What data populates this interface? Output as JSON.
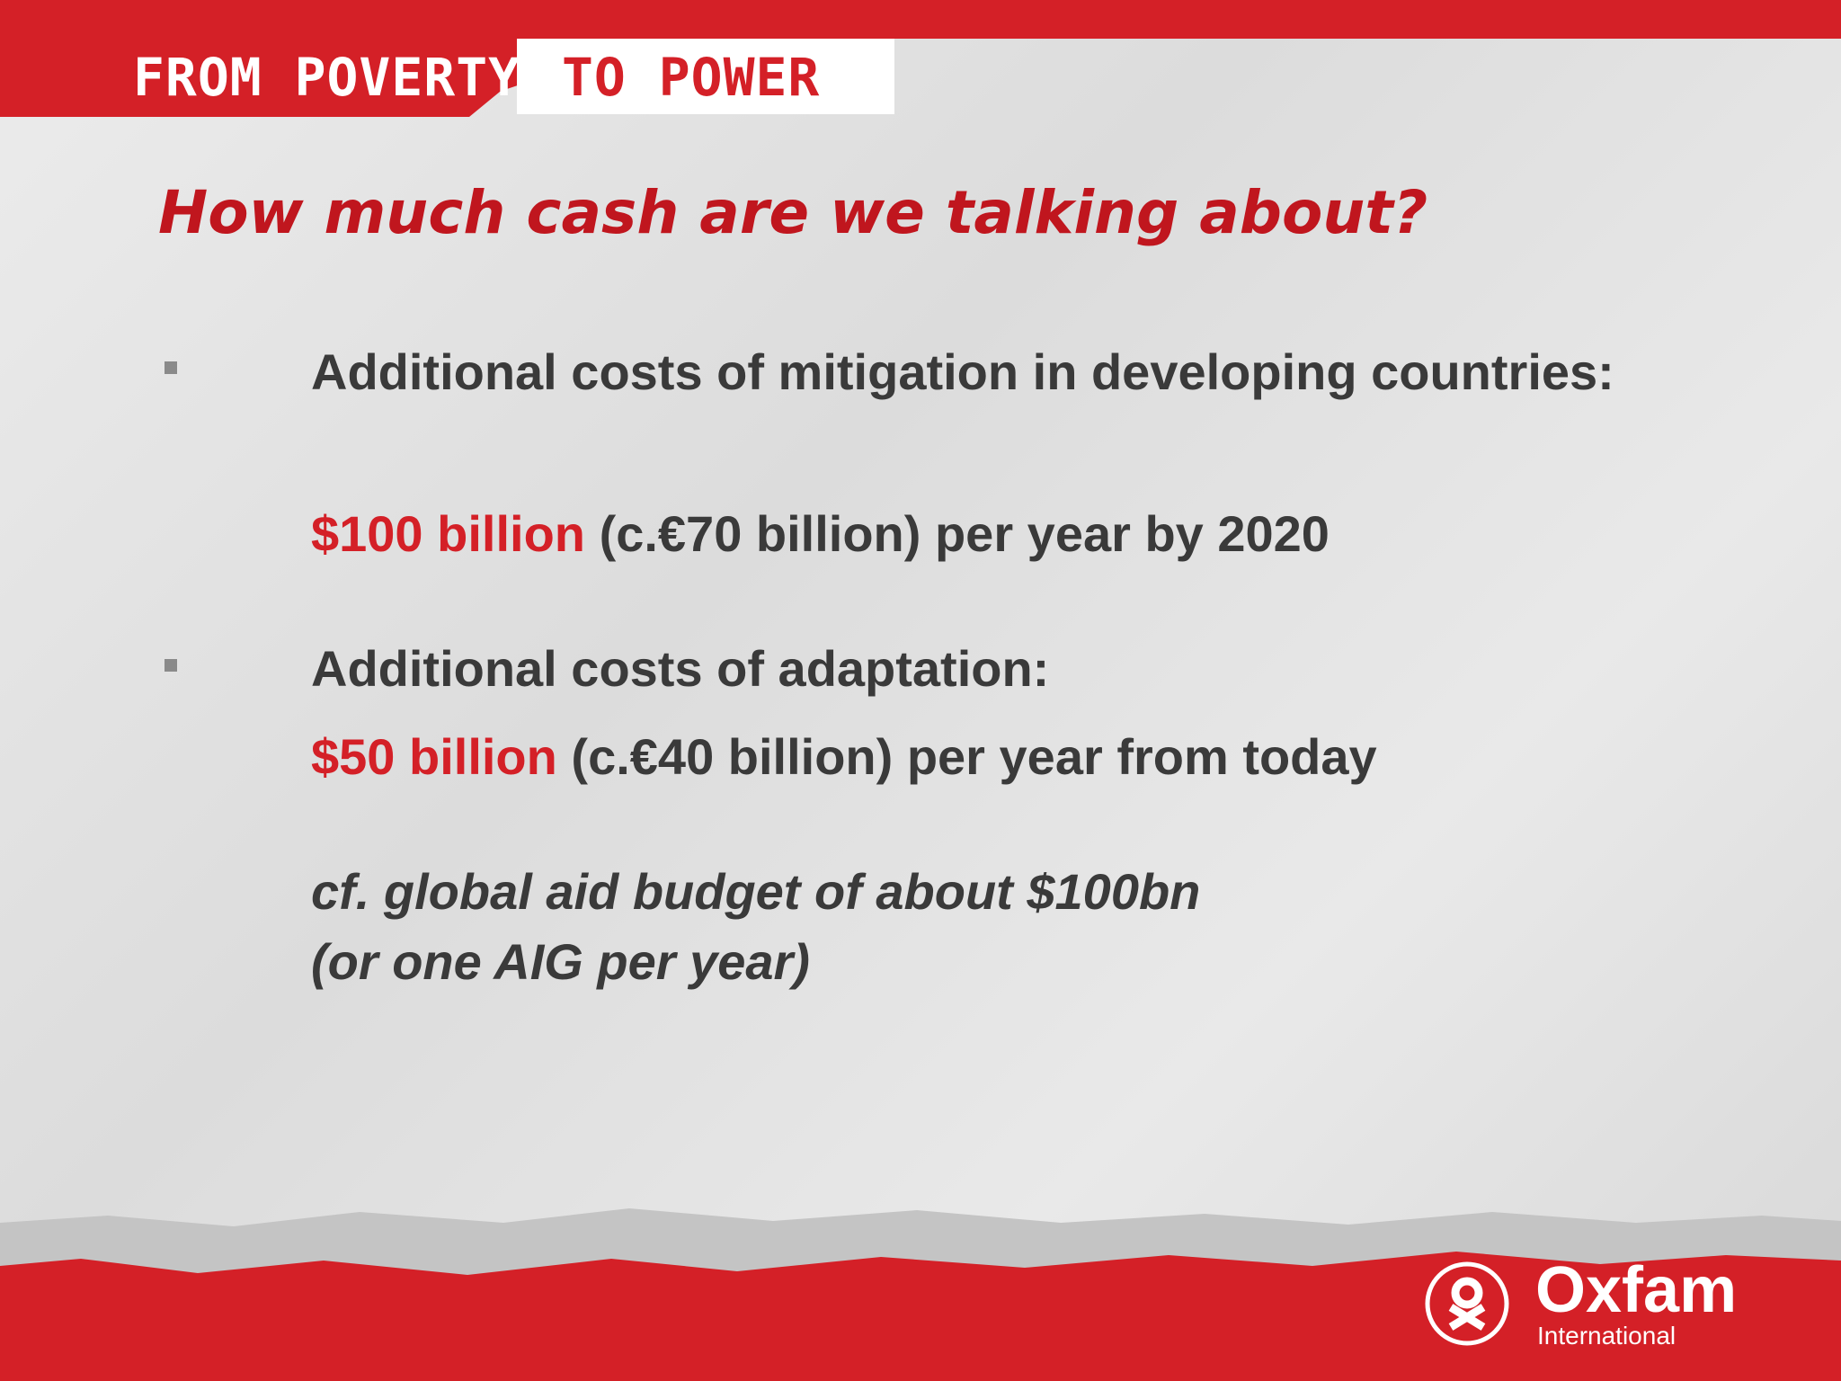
{
  "header": {
    "brand_left": "FROM POVERTY",
    "brand_right": "TO POWER"
  },
  "title": "How much cash are we talking about?",
  "bullets": [
    {
      "label": "Additional costs of mitigation in developing countries:",
      "highlight": "$100 billion",
      "detail": "(c.€70 billion) per year by 2020"
    },
    {
      "label": "Additional costs of adaptation:",
      "highlight": "$50 billion",
      "detail": "(c.€40 billion) per year from today"
    }
  ],
  "note": {
    "lines": [
      "cf. global aid budget of about $100bn",
      "(or one AIG per year)"
    ]
  },
  "footer": {
    "logo": "Oxfam",
    "logo_sub": "International"
  }
}
